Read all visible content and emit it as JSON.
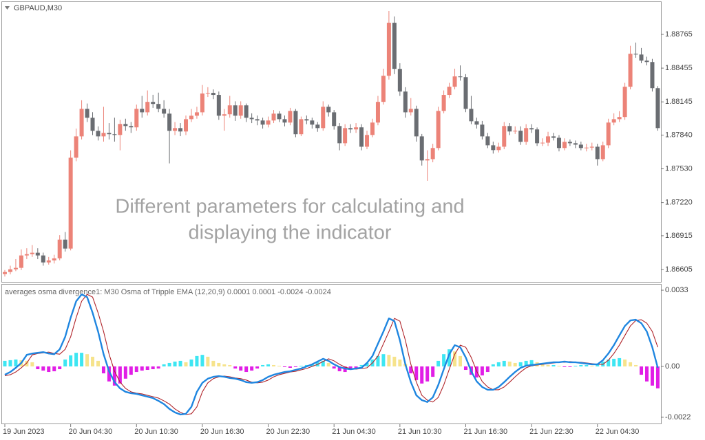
{
  "chart_data": [
    {
      "type": "candlestick",
      "title": "GBPAUD,M30",
      "annotation": [
        "Different parameters for calculating and",
        "displaying the indicator"
      ],
      "categories": [
        "19 Jun 2023",
        null,
        null,
        null,
        null,
        null,
        null,
        null,
        null,
        null,
        null,
        null,
        "20 Jun 04:30",
        null,
        null,
        null,
        null,
        null,
        null,
        null,
        null,
        null,
        null,
        null,
        "20 Jun 10:30",
        null,
        null,
        null,
        null,
        null,
        null,
        null,
        null,
        null,
        null,
        null,
        "20 Jun 16:30",
        null,
        null,
        null,
        null,
        null,
        null,
        null,
        null,
        null,
        null,
        null,
        "20 Jun 22:30",
        null,
        null,
        null,
        null,
        null,
        null,
        null,
        null,
        null,
        null,
        null,
        "21 Jun 04:30",
        null,
        null,
        null,
        null,
        null,
        null,
        null,
        null,
        null,
        null,
        null,
        "21 Jun 10:30",
        null,
        null,
        null,
        null,
        null,
        null,
        null,
        null,
        null,
        null,
        null,
        "21 Jun 16:30",
        null,
        null,
        null,
        null,
        null,
        null,
        null,
        null,
        null,
        null,
        null,
        "21 Jun 22:30",
        null,
        null,
        null,
        null,
        null,
        null,
        null,
        null,
        null,
        null,
        null,
        "22 Jun 04:30",
        null,
        null,
        null,
        null,
        null,
        null,
        null,
        null,
        null,
        null,
        null
      ],
      "open": [
        1.86563,
        1.86582,
        1.86607,
        1.8662,
        1.86734,
        1.86746,
        1.86759,
        1.86734,
        1.8667,
        1.86689,
        1.86708,
        1.86879,
        1.86797,
        1.87632,
        1.87828,
        1.88081,
        1.87999,
        1.87879,
        1.87828,
        1.8786,
        1.87848,
        1.87841,
        1.87942,
        1.87923,
        1.87911,
        1.88081,
        1.88049,
        1.88145,
        1.88126,
        1.88081,
        1.88037,
        1.87879,
        1.87904,
        1.87873,
        1.87986,
        1.88018,
        1.88049,
        1.88222,
        1.88228,
        1.88209,
        1.88018,
        1.88031,
        1.88113,
        1.88018,
        1.88113,
        1.87999,
        1.87986,
        1.87974,
        1.87936,
        1.87974,
        1.88037,
        1.87986,
        1.87955,
        1.88062,
        1.87848,
        1.87986,
        1.87974,
        1.87936,
        1.87904,
        1.881,
        1.88049,
        1.87923,
        1.87765,
        1.87904,
        1.87892,
        1.87911,
        1.87733,
        1.87841,
        1.87955,
        1.88145,
        1.88385,
        1.88872,
        1.88448,
        1.8824,
        1.88049,
        1.88081,
        1.87828,
        1.87607,
        1.87619,
        1.87721,
        1.88062,
        1.88209,
        1.88284,
        1.88379,
        1.88372,
        1.88081,
        1.87967,
        1.87936,
        1.87828,
        1.87746,
        1.87702,
        1.87733,
        1.87923,
        1.87873,
        1.8788,
        1.87778,
        1.87904,
        1.87892,
        1.87765,
        1.8777,
        1.87828,
        1.87815,
        1.87721,
        1.87778,
        1.87765,
        1.87752,
        1.87721,
        1.87725,
        1.87733,
        1.87619,
        1.87746,
        1.87955,
        1.87986,
        1.88006,
        1.88284,
        1.88587,
        1.8858,
        1.88524,
        1.88511,
        1.88271
      ],
      "high": [
        1.866,
        1.8664,
        1.867,
        1.8679,
        1.868,
        1.8683,
        1.868,
        1.8676,
        1.8672,
        1.8674,
        1.8692,
        1.8695,
        1.877,
        1.879,
        1.8816,
        1.8813,
        1.8805,
        1.8792,
        1.881,
        1.8795,
        1.88,
        1.8798,
        1.8799,
        1.8796,
        1.8812,
        1.882,
        1.8825,
        1.8821,
        1.8823,
        1.8816,
        1.8808,
        1.8796,
        1.8795,
        1.8802,
        1.8808,
        1.881,
        1.883,
        1.8828,
        1.8826,
        1.8824,
        1.8808,
        1.882,
        1.8815,
        1.8815,
        1.8813,
        1.8804,
        1.8802,
        1.88,
        1.8801,
        1.8807,
        1.8806,
        1.8802,
        1.8809,
        1.8808,
        1.8801,
        1.8802,
        1.88,
        1.8796,
        1.8815,
        1.8812,
        1.8807,
        1.8795,
        1.8794,
        1.8794,
        1.8795,
        1.8794,
        1.8788,
        1.8799,
        1.882,
        1.8845,
        1.8898,
        1.8893,
        1.885,
        1.8828,
        1.8818,
        1.8811,
        1.8785,
        1.877,
        1.8776,
        1.881,
        1.8825,
        1.8832,
        1.8845,
        1.8848,
        1.884,
        1.882,
        1.88,
        1.8797,
        1.8786,
        1.8778,
        1.8777,
        1.8796,
        1.8795,
        1.8792,
        1.8792,
        1.8794,
        1.8794,
        1.8791,
        1.8781,
        1.8787,
        1.8786,
        1.8784,
        1.8781,
        1.878,
        1.8779,
        1.8778,
        1.8776,
        1.8777,
        1.8776,
        1.8778,
        1.8799,
        1.8804,
        1.8806,
        1.8832,
        1.8866,
        1.8869,
        1.8864,
        1.8856,
        1.8854,
        1.8829
      ],
      "low": [
        1.8654,
        1.8656,
        1.8659,
        1.866,
        1.867,
        1.8672,
        1.867,
        1.8664,
        1.8665,
        1.8666,
        1.8669,
        1.8677,
        1.8678,
        1.876,
        1.878,
        1.8796,
        1.8784,
        1.8779,
        1.8778,
        1.878,
        1.8778,
        1.877,
        1.8788,
        1.8786,
        1.8788,
        1.88,
        1.8802,
        1.8809,
        1.8805,
        1.88,
        1.8758,
        1.8784,
        1.8783,
        1.8784,
        1.8796,
        1.8799,
        1.8802,
        1.8819,
        1.8817,
        1.8798,
        1.8788,
        1.88,
        1.8797,
        1.8799,
        1.8796,
        1.8795,
        1.8793,
        1.879,
        1.8791,
        1.8795,
        1.8796,
        1.8792,
        1.8793,
        1.8782,
        1.8783,
        1.8794,
        1.879,
        1.8787,
        1.8788,
        1.8801,
        1.8789,
        1.877,
        1.8774,
        1.8786,
        1.8786,
        1.877,
        1.8771,
        1.8782,
        1.8793,
        1.8812,
        1.8835,
        1.884,
        1.882,
        1.88,
        1.8802,
        1.8778,
        1.8756,
        1.8742,
        1.8759,
        1.877,
        1.8804,
        1.8818,
        1.8826,
        1.8834,
        1.8805,
        1.8794,
        1.879,
        1.878,
        1.8772,
        1.8767,
        1.8768,
        1.8771,
        1.8784,
        1.8785,
        1.8775,
        1.8775,
        1.8786,
        1.8774,
        1.8774,
        1.8774,
        1.8779,
        1.8769,
        1.877,
        1.8774,
        1.8772,
        1.877,
        1.8769,
        1.877,
        1.8756,
        1.876,
        1.8772,
        1.8793,
        1.8796,
        1.8798,
        1.8826,
        1.8855,
        1.885,
        1.8848,
        1.8824,
        1.8788
      ],
      "close": [
        1.86582,
        1.86607,
        1.8662,
        1.86734,
        1.86746,
        1.86759,
        1.86734,
        1.8667,
        1.86689,
        1.86708,
        1.86879,
        1.86797,
        1.87632,
        1.87828,
        1.88081,
        1.87999,
        1.87879,
        1.87828,
        1.8786,
        1.87848,
        1.87841,
        1.87942,
        1.87923,
        1.87911,
        1.88081,
        1.88049,
        1.88145,
        1.88126,
        1.88081,
        1.88037,
        1.87879,
        1.87904,
        1.87873,
        1.87986,
        1.88018,
        1.88049,
        1.88222,
        1.88228,
        1.88209,
        1.88018,
        1.88031,
        1.88113,
        1.88018,
        1.88113,
        1.87999,
        1.87986,
        1.87974,
        1.87936,
        1.87974,
        1.88037,
        1.87986,
        1.87955,
        1.88062,
        1.87848,
        1.87986,
        1.87974,
        1.87936,
        1.87904,
        1.881,
        1.88049,
        1.87923,
        1.87765,
        1.87904,
        1.87892,
        1.87911,
        1.87733,
        1.87841,
        1.87955,
        1.88145,
        1.88385,
        1.88872,
        1.88448,
        1.8824,
        1.88049,
        1.88081,
        1.87828,
        1.87607,
        1.87619,
        1.87721,
        1.88062,
        1.88209,
        1.88284,
        1.88379,
        1.88372,
        1.88081,
        1.87967,
        1.87936,
        1.87828,
        1.87746,
        1.87702,
        1.87733,
        1.87923,
        1.87873,
        1.8788,
        1.87778,
        1.87904,
        1.87892,
        1.87765,
        1.8777,
        1.87828,
        1.87815,
        1.87721,
        1.87778,
        1.87765,
        1.87752,
        1.87721,
        1.87725,
        1.87733,
        1.87619,
        1.87746,
        1.87955,
        1.87986,
        1.88006,
        1.88284,
        1.88587,
        1.8858,
        1.88524,
        1.88511,
        1.88271,
        1.87904
      ],
      "up_color": "#ec8378",
      "down_color": "#6a6d72",
      "ylim": [
        1.86485,
        1.89062
      ],
      "yticks": [
        1.88765,
        1.88455,
        1.88145,
        {
          "value": 1.8784,
          "label": "1.87840"
        },
        {
          "value": 1.8753,
          "label": "1.87530"
        },
        {
          "value": 1.8722,
          "label": "1.87220"
        },
        1.86915,
        1.86605
      ]
    },
    {
      "type": "line",
      "title": "averages osma divergence1: M30 Osma of Tripple EMA (12,20,9) 0.0001 0.0001 -0.0024 -0.0024",
      "series": [
        {
          "color": "#b0242a",
          "values": [
            -0.0004,
            -0.00036,
            -0.00024,
            -6e-05,
            0.00015,
            0.0005,
            0.00056,
            0.00059,
            0.00062,
            0.00056,
            0.00053,
            0.00074,
            0.00128,
            0.00211,
            0.00282,
            0.00312,
            0.003,
            0.00232,
            0.00151,
            0.00053,
            -0.00021,
            -0.00068,
            -0.00095,
            -0.0011,
            -0.00116,
            -0.00119,
            -0.00125,
            -0.00131,
            -0.00137,
            -0.00149,
            -0.00163,
            -0.00184,
            -0.00199,
            -0.00208,
            -0.00205,
            -0.00175,
            -0.0011,
            -0.00071,
            -0.00053,
            -0.00045,
            -0.00042,
            -0.00045,
            -0.0005,
            -0.00053,
            -0.00059,
            -0.00068,
            -0.00071,
            -0.00068,
            -0.00059,
            -0.00045,
            -0.00036,
            -0.0003,
            -0.00024,
            -0.00021,
            -0.00015,
            -9e-05,
            0,
            9e-05,
            0.00021,
            0.00033,
            0.00024,
            9e-05,
            -3e-05,
            -9e-05,
            -0.00012,
            -9e-05,
            -6e-05,
            0.00015,
            0.00045,
            0.00098,
            0.00151,
            0.00208,
            0.00196,
            0.00113,
            9e-05,
            -0.00068,
            -0.00125,
            -0.00146,
            -0.00154,
            -0.00134,
            -0.0008,
            -0.00012,
            0.00053,
            0.00092,
            0.00083,
            0.00039,
            -0.00021,
            -0.00065,
            -0.00089,
            -0.00101,
            -0.00101,
            -0.00089,
            -0.00068,
            -0.00045,
            -0.00024,
            -6e-05,
            3e-05,
            6e-05,
            9e-05,
            0.00012,
            0.00015,
            0.00018,
            0.00018,
            0.00021,
            0.00018,
            0.00018,
            0.00015,
            0.00012,
            9e-05,
            9e-05,
            0.00027,
            0.00056,
            0.00092,
            0.00134,
            0.00175,
            0.00199,
            0.00202,
            0.00187,
            0.00151,
            0.00083
          ]
        },
        {
          "color": "#1f86e0",
          "values": [
            -0.00036,
            -0.00024,
            -6e-05,
            0.00015,
            0.0005,
            0.00056,
            0.00059,
            0.00062,
            0.00056,
            0.00053,
            0.00074,
            0.00128,
            0.00211,
            0.00282,
            0.00312,
            0.003,
            0.00232,
            0.00151,
            0.00053,
            -0.00021,
            -0.00068,
            -0.00095,
            -0.0011,
            -0.00116,
            -0.00119,
            -0.00125,
            -0.00131,
            -0.00137,
            -0.00149,
            -0.00163,
            -0.00184,
            -0.00199,
            -0.00208,
            -0.00205,
            -0.00175,
            -0.0011,
            -0.00071,
            -0.00053,
            -0.00045,
            -0.00042,
            -0.00045,
            -0.0005,
            -0.00053,
            -0.00059,
            -0.00068,
            -0.00071,
            -0.00068,
            -0.00059,
            -0.00045,
            -0.00036,
            -0.0003,
            -0.00024,
            -0.00021,
            -0.00015,
            -9e-05,
            0,
            9e-05,
            0.00021,
            0.00033,
            0.00024,
            9e-05,
            -3e-05,
            -9e-05,
            -0.00012,
            -9e-05,
            -6e-05,
            0.00015,
            0.00045,
            0.00098,
            0.00151,
            0.00208,
            0.00196,
            0.00113,
            9e-05,
            -0.00068,
            -0.00125,
            -0.00146,
            -0.00154,
            -0.00134,
            -0.0008,
            -0.00012,
            0.00053,
            0.00092,
            0.00083,
            0.00039,
            -0.00021,
            -0.00065,
            -0.00089,
            -0.00101,
            -0.00101,
            -0.00089,
            -0.00068,
            -0.00045,
            -0.00024,
            -6e-05,
            3e-05,
            6e-05,
            9e-05,
            0.00012,
            0.00015,
            0.00018,
            0.00018,
            0.00021,
            0.00018,
            0.00018,
            0.00015,
            0.00012,
            9e-05,
            9e-05,
            0.00027,
            0.00056,
            0.00092,
            0.00134,
            0.00175,
            0.00199,
            0.00202,
            0.00187,
            0.00151,
            0.00083,
            -6e-05
          ]
        }
      ],
      "histogram": {
        "rising_color": "#3de6f2",
        "falling_color": "#f6e38c",
        "negative_color": "#e11ee6",
        "values": [
          0.00024,
          0.00027,
          0.0003,
          0.00027,
          0.00024,
          0.00018,
          -0.00012,
          -0.00018,
          -0.00024,
          -0.00021,
          -0.00012,
          0.0003,
          0.00048,
          0.00059,
          0.00059,
          0.00053,
          0.00042,
          0.00024,
          -0.0003,
          -0.00065,
          -0.00083,
          -0.00074,
          -0.00053,
          -0.00036,
          -0.00024,
          -0.00018,
          -0.00015,
          -0.00012,
          -9e-05,
          9e-05,
          0.00015,
          0.00021,
          0.00024,
          0.00018,
          0.0003,
          0.00045,
          0.0005,
          0.00042,
          0.00024,
          0.00015,
          9e-05,
          6e-05,
          -9e-05,
          -0.00018,
          -0.00024,
          -0.00018,
          -9e-05,
          6e-05,
          9e-05,
          6e-05,
          3e-05,
          -3e-05,
          -6e-05,
          -3e-05,
          3e-05,
          6e-05,
          9e-05,
          0.00018,
          0.00024,
          0.00015,
          -9e-05,
          -0.00021,
          -0.00024,
          -0.00015,
          -6e-05,
          6e-05,
          0.00015,
          0.0003,
          0.00045,
          0.00053,
          0.0005,
          0.00042,
          0.0003,
          0.00012,
          -0.0003,
          -0.00059,
          -0.00074,
          -0.00065,
          -0.00045,
          0.00024,
          0.00053,
          0.00074,
          0.00065,
          0.00045,
          -0.00015,
          -0.00036,
          -0.00048,
          -0.00039,
          -0.00024,
          9e-05,
          0.00018,
          0.00024,
          0.00021,
          0.00015,
          0.00018,
          0.00024,
          0.00027,
          0.00018,
          9e-05,
          6e-05,
          6e-05,
          3e-05,
          -3e-05,
          -3e-05,
          3e-05,
          6e-05,
          6e-05,
          3e-05,
          0.00012,
          0.00021,
          0.0003,
          0.00033,
          0.00036,
          0.0003,
          0.00018,
          6e-05,
          -0.00036,
          -0.00065,
          -0.00083,
          -0.00095
        ]
      },
      "ylim": [
        -0.0025,
        0.00357
      ],
      "yticks": [
        0.0033,
        {
          "value": 0,
          "label": "0.00"
        },
        -0.0022
      ]
    }
  ]
}
